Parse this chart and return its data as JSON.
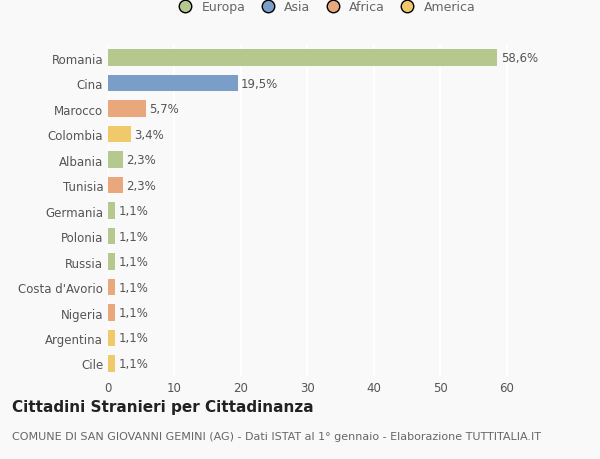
{
  "categories": [
    "Romania",
    "Cina",
    "Marocco",
    "Colombia",
    "Albania",
    "Tunisia",
    "Germania",
    "Polonia",
    "Russia",
    "Costa d'Avorio",
    "Nigeria",
    "Argentina",
    "Cile"
  ],
  "values": [
    58.6,
    19.5,
    5.7,
    3.4,
    2.3,
    2.3,
    1.1,
    1.1,
    1.1,
    1.1,
    1.1,
    1.1,
    1.1
  ],
  "labels": [
    "58,6%",
    "19,5%",
    "5,7%",
    "3,4%",
    "2,3%",
    "2,3%",
    "1,1%",
    "1,1%",
    "1,1%",
    "1,1%",
    "1,1%",
    "1,1%",
    "1,1%"
  ],
  "colors": [
    "#b5c98e",
    "#7b9ec9",
    "#e8a87c",
    "#f0c96a",
    "#b5c98e",
    "#e8a87c",
    "#b5c98e",
    "#b5c98e",
    "#b5c98e",
    "#e8a87c",
    "#e8a87c",
    "#f0c96a",
    "#f0c96a"
  ],
  "legend_labels": [
    "Europa",
    "Asia",
    "Africa",
    "America"
  ],
  "legend_colors": [
    "#b5c98e",
    "#7b9ec9",
    "#e8a87c",
    "#f0c96a"
  ],
  "title": "Cittadini Stranieri per Cittadinanza",
  "subtitle": "COMUNE DI SAN GIOVANNI GEMINI (AG) - Dati ISTAT al 1° gennaio - Elaborazione TUTTITALIA.IT",
  "xlim": [
    0,
    65
  ],
  "xticks": [
    0,
    10,
    20,
    30,
    40,
    50,
    60
  ],
  "background_color": "#f9f9f9",
  "plot_background_color": "#f9f9f9",
  "grid_color": "#ffffff",
  "bar_height": 0.65,
  "title_fontsize": 11,
  "subtitle_fontsize": 8,
  "tick_fontsize": 8.5,
  "label_fontsize": 8.5
}
